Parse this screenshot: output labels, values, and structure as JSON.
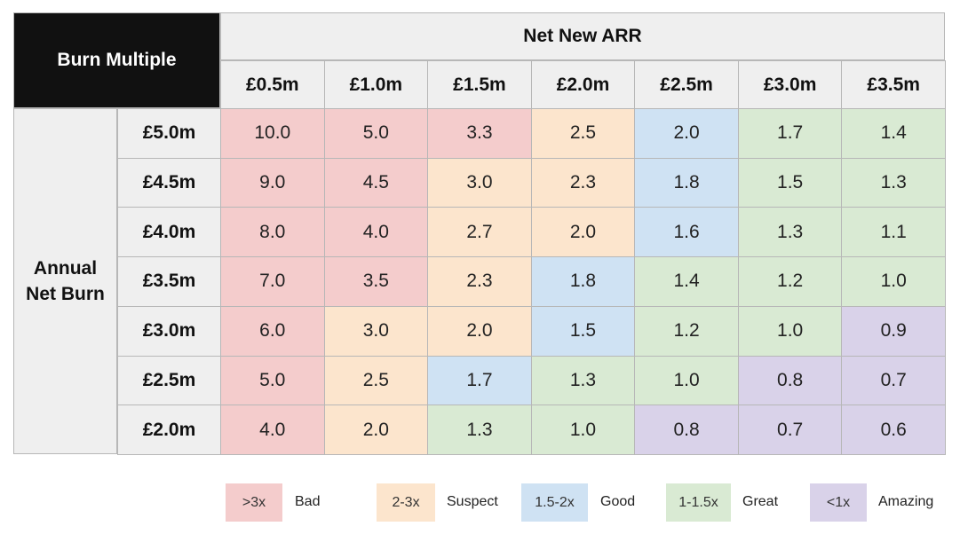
{
  "header": {
    "corner": "Burn Multiple",
    "column_group": "Net New ARR",
    "row_group": "Annual Net Burn"
  },
  "columns": [
    "£0.5m",
    "£1.0m",
    "£1.5m",
    "£2.0m",
    "£2.5m",
    "£3.0m",
    "£3.5m"
  ],
  "rows": [
    {
      "label": "£5.0m",
      "cells": [
        {
          "text": "10.0",
          "color": "#f4cccc"
        },
        {
          "text": "5.0",
          "color": "#f4cccc"
        },
        {
          "text": "3.3",
          "color": "#f4cccc"
        },
        {
          "text": "2.5",
          "color": "#fce5cd"
        },
        {
          "text": "2.0",
          "color": "#cfe2f3"
        },
        {
          "text": "1.7",
          "color": "#d9ead3"
        },
        {
          "text": "1.4",
          "color": "#d9ead3"
        }
      ]
    },
    {
      "label": "£4.5m",
      "cells": [
        {
          "text": "9.0",
          "color": "#f4cccc"
        },
        {
          "text": "4.5",
          "color": "#f4cccc"
        },
        {
          "text": "3.0",
          "color": "#fce5cd"
        },
        {
          "text": "2.3",
          "color": "#fce5cd"
        },
        {
          "text": "1.8",
          "color": "#cfe2f3"
        },
        {
          "text": "1.5",
          "color": "#d9ead3"
        },
        {
          "text": "1.3",
          "color": "#d9ead3"
        }
      ]
    },
    {
      "label": "£4.0m",
      "cells": [
        {
          "text": "8.0",
          "color": "#f4cccc"
        },
        {
          "text": "4.0",
          "color": "#f4cccc"
        },
        {
          "text": "2.7",
          "color": "#fce5cd"
        },
        {
          "text": "2.0",
          "color": "#fce5cd"
        },
        {
          "text": "1.6",
          "color": "#cfe2f3"
        },
        {
          "text": "1.3",
          "color": "#d9ead3"
        },
        {
          "text": "1.1",
          "color": "#d9ead3"
        }
      ]
    },
    {
      "label": "£3.5m",
      "cells": [
        {
          "text": "7.0",
          "color": "#f4cccc"
        },
        {
          "text": "3.5",
          "color": "#f4cccc"
        },
        {
          "text": "2.3",
          "color": "#fce5cd"
        },
        {
          "text": "1.8",
          "color": "#cfe2f3"
        },
        {
          "text": "1.4",
          "color": "#d9ead3"
        },
        {
          "text": "1.2",
          "color": "#d9ead3"
        },
        {
          "text": "1.0",
          "color": "#d9ead3"
        }
      ]
    },
    {
      "label": "£3.0m",
      "cells": [
        {
          "text": "6.0",
          "color": "#f4cccc"
        },
        {
          "text": "3.0",
          "color": "#fce5cd"
        },
        {
          "text": "2.0",
          "color": "#fce5cd"
        },
        {
          "text": "1.5",
          "color": "#cfe2f3"
        },
        {
          "text": "1.2",
          "color": "#d9ead3"
        },
        {
          "text": "1.0",
          "color": "#d9ead3"
        },
        {
          "text": "0.9",
          "color": "#d9d2e9"
        }
      ]
    },
    {
      "label": "£2.5m",
      "cells": [
        {
          "text": "5.0",
          "color": "#f4cccc"
        },
        {
          "text": "2.5",
          "color": "#fce5cd"
        },
        {
          "text": "1.7",
          "color": "#cfe2f3"
        },
        {
          "text": "1.3",
          "color": "#d9ead3"
        },
        {
          "text": "1.0",
          "color": "#d9ead3"
        },
        {
          "text": "0.8",
          "color": "#d9d2e9"
        },
        {
          "text": "0.7",
          "color": "#d9d2e9"
        }
      ]
    },
    {
      "label": "£2.0m",
      "cells": [
        {
          "text": "4.0",
          "color": "#f4cccc"
        },
        {
          "text": "2.0",
          "color": "#fce5cd"
        },
        {
          "text": "1.3",
          "color": "#d9ead3"
        },
        {
          "text": "1.0",
          "color": "#d9ead3"
        },
        {
          "text": "0.8",
          "color": "#d9d2e9"
        },
        {
          "text": "0.7",
          "color": "#d9d2e9"
        },
        {
          "text": "0.6",
          "color": "#d9d2e9"
        }
      ]
    }
  ],
  "legend": [
    {
      "range": ">3x",
      "label": "Bad",
      "color": "#f4cccc"
    },
    {
      "range": "2-3x",
      "label": "Suspect",
      "color": "#fce5cd"
    },
    {
      "range": "1.5-2x",
      "label": "Good",
      "color": "#cfe2f3"
    },
    {
      "range": "1-1.5x",
      "label": "Great",
      "color": "#d9ead3"
    },
    {
      "range": "<1x",
      "label": "Amazing",
      "color": "#d9d2e9"
    }
  ]
}
